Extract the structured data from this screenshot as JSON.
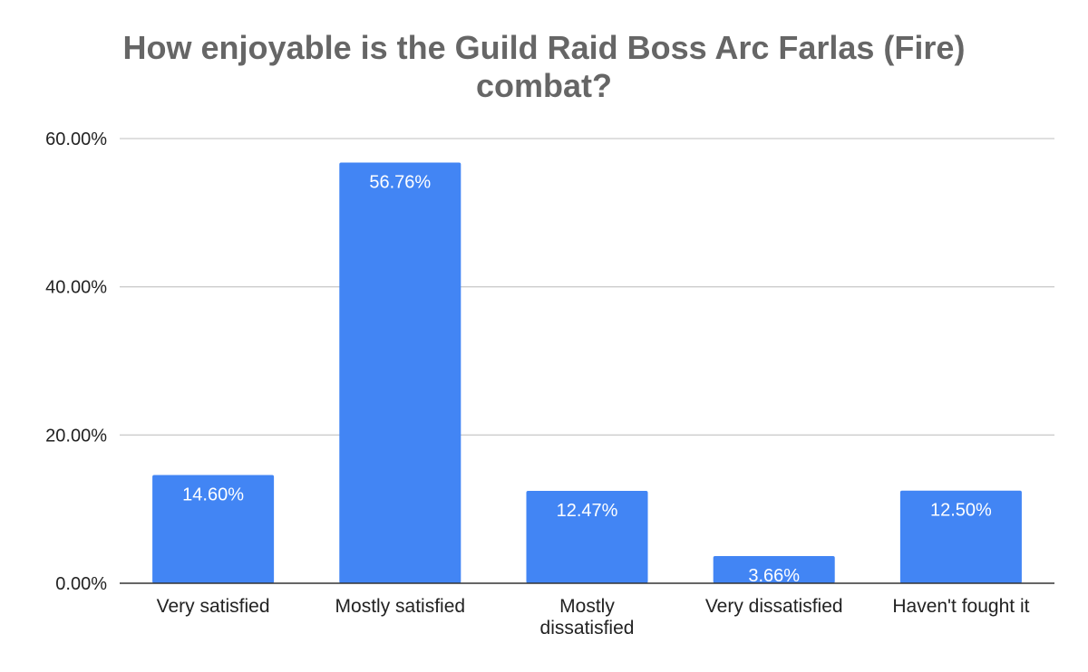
{
  "chart_data": {
    "type": "bar",
    "title": "How enjoyable is the Guild Raid Boss Arc Farlas (Fire) combat?",
    "title_lines": [
      "How enjoyable is the Guild Raid Boss Arc Farlas (Fire)",
      "combat?"
    ],
    "xlabel": "",
    "ylabel": "",
    "categories": [
      "Very satisfied",
      "Mostly satisfied",
      "Mostly dissatisfied",
      "Very dissatisfied",
      "Haven't fought it"
    ],
    "category_lines": [
      [
        "Very satisfied"
      ],
      [
        "Mostly satisfied"
      ],
      [
        "Mostly",
        "dissatisfied"
      ],
      [
        "Very dissatisfied"
      ],
      [
        "Haven't fought it"
      ]
    ],
    "values": [
      14.6,
      56.76,
      12.47,
      3.66,
      12.5
    ],
    "data_labels": [
      "14.60%",
      "56.76%",
      "12.47%",
      "3.66%",
      "12.50%"
    ],
    "ylim": [
      0,
      60
    ],
    "yticks": [
      0,
      20,
      40,
      60
    ],
    "ytick_labels": [
      "0.00%",
      "20.00%",
      "40.00%",
      "60.00%"
    ],
    "grid": true,
    "legend": "none",
    "bar_color": "#4285f4",
    "grid_color": "#cccccc",
    "axis_color": "#333333",
    "title_color": "#666666"
  }
}
